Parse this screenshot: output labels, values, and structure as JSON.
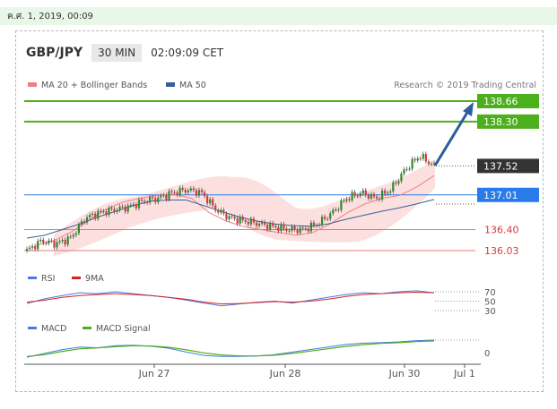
{
  "date_bar": "ค.ศ. 1, 2019, 00:09",
  "header": {
    "pair": "GBP/JPY",
    "timeframe": "30 MIN",
    "time": "02:09:09 CET"
  },
  "legend": {
    "ma20": "MA 20 + Bollinger Bands",
    "ma50": "MA 50",
    "credit": "Research © 2019 Trading Central"
  },
  "colors": {
    "ma20": "#f08080",
    "ma50": "#3a5f9a",
    "green": "#4caf1c",
    "blue": "#2a7bea",
    "dark": "#333333",
    "band": "#fbd8d8",
    "arrow": "#2c5d9c"
  },
  "chart_data": [
    {
      "type": "line",
      "title": "GBP/JPY 30 MIN",
      "x_ticks": [
        "Jun 27",
        "Jun 28",
        "Jun 30",
        "Jul 1"
      ],
      "levels": [
        {
          "label": "138.66",
          "value": 138.66,
          "kind": "resistance"
        },
        {
          "label": "138.30",
          "value": 138.3,
          "kind": "resistance"
        },
        {
          "label": "137.52",
          "value": 137.52,
          "kind": "last"
        },
        {
          "label": "137.01",
          "value": 137.01,
          "kind": "pivot"
        },
        {
          "label": "136.40",
          "value": 136.4,
          "kind": "support"
        },
        {
          "label": "136.03",
          "value": 136.03,
          "kind": "support"
        }
      ],
      "series": [
        {
          "name": "MA 20 + Bollinger Bands",
          "values": [
            136.12,
            136.2,
            136.35,
            136.55,
            136.75,
            136.88,
            136.95,
            137.0,
            137.02,
            136.95,
            136.7,
            136.55,
            136.45,
            136.4,
            136.35,
            136.3,
            136.35,
            136.5,
            136.7,
            136.85,
            136.95,
            137.0,
            137.15,
            137.35
          ]
        },
        {
          "name": "MA 50",
          "values": [
            136.25,
            136.3,
            136.4,
            136.5,
            136.62,
            136.72,
            136.82,
            136.9,
            136.92,
            136.92,
            136.82,
            136.72,
            136.62,
            136.55,
            136.5,
            136.47,
            136.46,
            136.5,
            136.58,
            136.65,
            136.72,
            136.78,
            136.85,
            136.93
          ]
        }
      ],
      "price": [
        136.03,
        136.2,
        136.15,
        136.25,
        136.6,
        136.7,
        136.75,
        136.8,
        136.9,
        136.95,
        137.05,
        137.1,
        137.05,
        136.75,
        136.6,
        136.55,
        136.5,
        136.45,
        136.4,
        136.4,
        136.5,
        136.7,
        136.95,
        137.05,
        136.95,
        137.1,
        137.45,
        137.7,
        137.52
      ]
    },
    {
      "type": "line",
      "panel": "RSI",
      "series": [
        {
          "name": "RSI",
          "values": [
            45,
            55,
            62,
            68,
            66,
            70,
            66,
            62,
            58,
            52,
            46,
            40,
            44,
            48,
            50,
            46,
            52,
            58,
            64,
            68,
            66,
            70,
            72,
            68
          ]
        },
        {
          "name": "9MA",
          "values": [
            48,
            52,
            58,
            62,
            64,
            66,
            64,
            62,
            58,
            54,
            48,
            44,
            45,
            47,
            49,
            48,
            50,
            54,
            60,
            64,
            66,
            68,
            69,
            68
          ]
        }
      ],
      "y_ticks": [
        "70",
        "50",
        "30"
      ]
    },
    {
      "type": "line",
      "panel": "MACD",
      "series": [
        {
          "name": "MACD",
          "values": [
            -0.25,
            -0.1,
            0.05,
            0.15,
            0.12,
            0.2,
            0.22,
            0.18,
            0.1,
            -0.05,
            -0.18,
            -0.22,
            -0.22,
            -0.2,
            -0.15,
            -0.05,
            0.05,
            0.15,
            0.25,
            0.3,
            0.32,
            0.35,
            0.4,
            0.42
          ]
        },
        {
          "name": "MACD Signal",
          "values": [
            -0.22,
            -0.15,
            -0.02,
            0.08,
            0.12,
            0.16,
            0.2,
            0.19,
            0.14,
            0.04,
            -0.08,
            -0.16,
            -0.2,
            -0.2,
            -0.17,
            -0.1,
            -0.01,
            0.08,
            0.17,
            0.24,
            0.29,
            0.32,
            0.36,
            0.39
          ]
        }
      ],
      "y_ticks": [
        "0"
      ]
    }
  ]
}
